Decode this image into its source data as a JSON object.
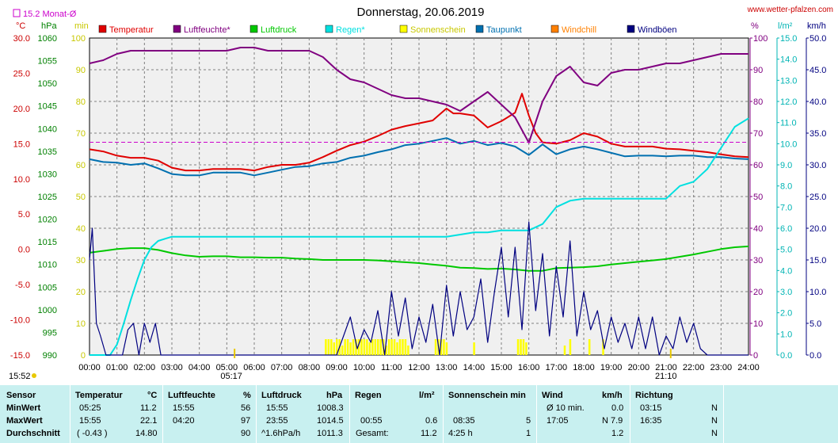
{
  "chart_data": {
    "type": "line",
    "title": "Donnerstag, 20.06.2019",
    "source": "www.wetter-pfalzen.com",
    "monthly_avg_label": "15.2 Monat-Ø",
    "x_ticks": [
      "00:00",
      "01:00",
      "02:00",
      "03:00",
      "04:00",
      "05:00",
      "06:00",
      "07:00",
      "08:00",
      "09:00",
      "10:00",
      "11:00",
      "12:00",
      "13:00",
      "14:00",
      "15:00",
      "16:00",
      "17:00",
      "18:00",
      "19:00",
      "20:00",
      "21:00",
      "22:00",
      "23:00",
      "24:00"
    ],
    "sunrise": "05:17",
    "sunset": "21:10",
    "daylight": "15:52",
    "axes": {
      "temperature": {
        "unit": "°C",
        "ticks": [
          "30.0",
          "25.0",
          "20.0",
          "15.0",
          "10.0",
          "5.0",
          "0.0",
          "-5.0",
          "-10.0",
          "-15.0"
        ],
        "range": [
          -15,
          30
        ],
        "color": "#cc0000"
      },
      "pressure": {
        "unit": "hPa",
        "ticks": [
          "1060",
          "1055",
          "1050",
          "1045",
          "1040",
          "1035",
          "1030",
          "1025",
          "1020",
          "1015",
          "1010",
          "1005",
          "1000",
          "995",
          "990"
        ],
        "range": [
          990,
          1060
        ],
        "color": "#008000"
      },
      "sunshine": {
        "unit": "min",
        "ticks": [
          "100",
          "90",
          "80",
          "70",
          "60",
          "50",
          "40",
          "30",
          "20",
          "10",
          "0"
        ],
        "range": [
          0,
          100
        ],
        "color": "#c8c800"
      },
      "humidity": {
        "unit": "%",
        "ticks": [
          "100",
          "90",
          "80",
          "70",
          "60",
          "50",
          "40",
          "30",
          "20",
          "10",
          "0"
        ],
        "range": [
          0,
          100
        ],
        "color": "#800080"
      },
      "rain": {
        "unit": "l/m²",
        "ticks": [
          "15.0",
          "14.0",
          "13.0",
          "12.0",
          "11.0",
          "10.0",
          "9.0",
          "8.0",
          "7.0",
          "6.0",
          "5.0",
          "4.0",
          "3.0",
          "2.0",
          "1.0",
          "0.0"
        ],
        "range": [
          0,
          15
        ],
        "color": "#00b4b4"
      },
      "wind": {
        "unit": "km/h",
        "ticks": [
          "50.0",
          "45.0",
          "40.0",
          "35.0",
          "30.0",
          "25.0",
          "20.0",
          "15.0",
          "10.0",
          "5.0",
          "0.0"
        ],
        "range": [
          0,
          50
        ],
        "color": "#000080"
      }
    },
    "legend": [
      {
        "name": "Temperatur",
        "color": "#e00000"
      },
      {
        "name": "Luftfeuchte*",
        "color": "#800080"
      },
      {
        "name": "Luftdruck",
        "color": "#00c800"
      },
      {
        "name": "Regen*",
        "color": "#00e0e0"
      },
      {
        "name": "Sonnenschein",
        "color": "#ffff00"
      },
      {
        "name": "Taupunkt",
        "color": "#0070b0"
      },
      {
        "name": "Windchill",
        "color": "#ff8000"
      },
      {
        "name": "Windböen",
        "color": "#000080"
      }
    ],
    "monthly_avg_temperature": 15.2,
    "series": [
      {
        "name": "Temperatur",
        "axis": "temperature",
        "color": "#e00000",
        "x": [
          0,
          0.5,
          1,
          1.5,
          2,
          2.5,
          3,
          3.5,
          4,
          4.5,
          5,
          5.5,
          6,
          6.5,
          7,
          7.5,
          8,
          8.5,
          9,
          9.5,
          10,
          10.5,
          11,
          11.5,
          12,
          12.5,
          13,
          13.25,
          13.5,
          14,
          14.5,
          15,
          15.5,
          15.75,
          16,
          16.25,
          16.5,
          17,
          17.5,
          18,
          18.5,
          19,
          19.5,
          20,
          20.5,
          21,
          21.5,
          22,
          22.5,
          23,
          23.5,
          24
        ],
        "y": [
          14.2,
          13.9,
          13.3,
          13.0,
          13.0,
          12.6,
          11.6,
          11.2,
          11.2,
          11.4,
          11.4,
          11.4,
          11.2,
          11.7,
          12.0,
          12.0,
          12.3,
          13.1,
          14.0,
          14.8,
          15.3,
          16.1,
          17.0,
          17.5,
          17.9,
          18.3,
          20.0,
          19.3,
          19.3,
          19.0,
          17.3,
          18.2,
          19.4,
          22.1,
          19.0,
          16.5,
          15.2,
          15.0,
          15.5,
          16.5,
          16.0,
          15.0,
          14.6,
          14.6,
          14.6,
          14.3,
          14.2,
          14.0,
          13.8,
          13.5,
          13.2,
          13.1
        ]
      },
      {
        "name": "Taupunkt",
        "axis": "temperature",
        "color": "#0070b0",
        "x": [
          0,
          0.5,
          1,
          1.5,
          2,
          2.5,
          3,
          3.5,
          4,
          4.5,
          5,
          5.5,
          6,
          6.5,
          7,
          7.5,
          8,
          8.5,
          9,
          9.5,
          10,
          10.5,
          11,
          11.5,
          12,
          12.5,
          13,
          13.5,
          14,
          14.5,
          15,
          15.5,
          16,
          16.5,
          17,
          17.5,
          18,
          18.5,
          19,
          19.5,
          20,
          20.5,
          21,
          21.5,
          22,
          22.5,
          23,
          23.5,
          24
        ],
        "y": [
          12.8,
          12.4,
          12.3,
          12.0,
          12.2,
          11.5,
          10.7,
          10.5,
          10.5,
          10.9,
          10.9,
          10.9,
          10.5,
          10.9,
          11.3,
          11.7,
          11.8,
          12.2,
          12.4,
          13.0,
          13.3,
          13.8,
          14.2,
          14.8,
          15.0,
          15.4,
          15.8,
          15.0,
          15.4,
          14.8,
          15.1,
          14.6,
          13.4,
          14.9,
          13.5,
          14.2,
          14.6,
          14.2,
          13.7,
          13.2,
          13.3,
          13.3,
          13.2,
          13.3,
          13.3,
          13.1,
          13.1,
          12.9,
          12.8
        ]
      },
      {
        "name": "Luftfeuchte*",
        "axis": "humidity",
        "color": "#800080",
        "x": [
          0,
          0.5,
          1,
          1.5,
          2,
          2.5,
          3,
          3.5,
          4,
          4.5,
          5,
          5.5,
          6,
          6.5,
          7,
          7.5,
          8,
          8.5,
          9,
          9.5,
          10,
          10.5,
          11,
          11.5,
          12,
          12.5,
          13,
          13.5,
          14,
          14.5,
          15,
          15.5,
          16,
          16.5,
          17,
          17.5,
          18,
          18.5,
          19,
          19.5,
          20,
          20.5,
          21,
          21.5,
          22,
          22.5,
          23,
          23.5,
          24
        ],
        "y": [
          92,
          93,
          95,
          96,
          96,
          96,
          96,
          96,
          96,
          96,
          96,
          97,
          97,
          96,
          96,
          96,
          96,
          94,
          90,
          87,
          86,
          84,
          82,
          81,
          81,
          80,
          79,
          77,
          80,
          83,
          79,
          75,
          67,
          80,
          88,
          91,
          86,
          85,
          89,
          90,
          90,
          91,
          92,
          92,
          93,
          94,
          95,
          95,
          95
        ]
      },
      {
        "name": "Luftdruck",
        "axis": "pressure",
        "color": "#00c800",
        "x": [
          0,
          0.5,
          1,
          1.5,
          2,
          2.5,
          3,
          3.5,
          4,
          4.5,
          5,
          5.5,
          6,
          6.5,
          7,
          7.5,
          8,
          8.5,
          9,
          9.5,
          10,
          10.5,
          11,
          11.5,
          12,
          12.5,
          13,
          13.5,
          14,
          14.5,
          15,
          15.5,
          16,
          16.5,
          17,
          17.5,
          18,
          18.5,
          19,
          19.5,
          20,
          20.5,
          21,
          21.5,
          22,
          22.5,
          23,
          23.5,
          24
        ],
        "y": [
          1012.6,
          1013.0,
          1013.4,
          1013.6,
          1013.6,
          1013.2,
          1012.5,
          1012.0,
          1011.7,
          1011.8,
          1011.8,
          1011.6,
          1011.6,
          1011.5,
          1011.5,
          1011.3,
          1011.2,
          1011.0,
          1011.0,
          1011.0,
          1011.0,
          1010.9,
          1010.7,
          1010.5,
          1010.3,
          1010.0,
          1009.7,
          1009.3,
          1009.2,
          1009.0,
          1009.1,
          1008.9,
          1008.6,
          1008.6,
          1009.2,
          1009.3,
          1009.4,
          1009.6,
          1010.0,
          1010.3,
          1010.6,
          1010.9,
          1011.2,
          1011.7,
          1012.2,
          1012.8,
          1013.4,
          1013.8,
          1014.0
        ]
      },
      {
        "name": "Regen*",
        "axis": "rain",
        "color": "#00e0e0",
        "x": [
          0,
          0.5,
          0.75,
          1,
          1.25,
          1.5,
          1.75,
          2,
          2.25,
          2.5,
          2.75,
          3,
          6,
          9,
          12,
          13,
          14,
          14.5,
          15,
          15.5,
          16,
          16.5,
          17,
          17.5,
          18,
          19,
          20,
          20.5,
          21,
          21.25,
          21.5,
          22,
          22.5,
          23,
          23.5,
          24
        ],
        "y": [
          0,
          0,
          0,
          0.5,
          1.5,
          2.6,
          3.6,
          4.5,
          5.1,
          5.4,
          5.5,
          5.6,
          5.6,
          5.6,
          5.6,
          5.6,
          5.8,
          5.8,
          5.9,
          5.9,
          5.9,
          6.2,
          7.0,
          7.3,
          7.4,
          7.4,
          7.4,
          7.4,
          7.4,
          7.7,
          8.0,
          8.2,
          8.8,
          9.8,
          10.8,
          11.2
        ]
      },
      {
        "name": "Windböen",
        "axis": "wind",
        "color": "#000080",
        "x": [
          0,
          0.1,
          0.25,
          0.4,
          0.6,
          0.8,
          1,
          1.2,
          1.4,
          1.6,
          1.8,
          2,
          2.2,
          2.4,
          2.6,
          2.8,
          3,
          3.5,
          4,
          4.5,
          5,
          5.5,
          6,
          6.5,
          7,
          7.5,
          8,
          8.5,
          9,
          9.25,
          9.5,
          9.75,
          10,
          10.25,
          10.5,
          10.75,
          11,
          11.25,
          11.5,
          11.75,
          12,
          12.25,
          12.5,
          12.75,
          13,
          13.25,
          13.5,
          13.75,
          14,
          14.25,
          14.5,
          14.75,
          15,
          15.25,
          15.5,
          15.75,
          16,
          16.25,
          16.5,
          16.75,
          17,
          17.25,
          17.5,
          17.75,
          18,
          18.25,
          18.5,
          18.75,
          19,
          19.25,
          19.5,
          19.75,
          20,
          20.25,
          20.5,
          20.75,
          21,
          21.25,
          21.5,
          21.75,
          22,
          22.25,
          22.5,
          22.75,
          23,
          23.5,
          24
        ],
        "y": [
          15,
          20,
          5,
          3,
          0,
          0,
          0,
          0,
          4,
          5,
          0,
          5,
          2,
          5,
          0,
          0,
          0,
          0,
          0,
          0,
          0,
          0,
          0,
          0,
          0,
          0,
          0,
          0,
          0,
          3,
          6,
          1,
          4,
          2,
          7,
          0,
          10,
          3,
          9,
          1,
          6,
          2,
          8,
          0,
          11,
          3,
          10,
          4,
          6,
          12,
          2,
          10,
          17,
          6,
          17,
          4,
          21,
          7,
          16,
          3,
          14,
          6,
          18,
          3,
          10,
          4,
          7,
          1,
          6,
          2,
          5,
          1,
          6,
          1,
          6,
          0,
          3,
          1,
          6,
          2,
          5,
          1,
          0,
          0,
          0,
          0,
          0
        ]
      },
      {
        "name": "Sonnenschein",
        "axis": "sunshine",
        "color": "#ffff00",
        "x": [
          8.6,
          8.7,
          8.8,
          8.9,
          9.0,
          9.1,
          9.2,
          9.3,
          9.4,
          9.5,
          9.6,
          9.7,
          9.8,
          9.9,
          10.0,
          10.1,
          10.2,
          10.3,
          10.4,
          10.5,
          10.6,
          10.7,
          10.8,
          10.9,
          11.0,
          11.1,
          11.2,
          11.3,
          11.4,
          11.5,
          11.6,
          12.6,
          12.7,
          12.8,
          12.9,
          13.0,
          14.0,
          15.6,
          15.7,
          15.8,
          15.9,
          17.3,
          17.5,
          18.2,
          18.7
        ],
        "y": [
          5,
          5,
          5,
          4,
          5,
          5,
          3,
          5,
          5,
          4,
          5,
          5,
          5,
          5,
          5,
          5,
          4,
          5,
          5,
          5,
          5,
          5,
          3,
          5,
          5,
          5,
          4,
          5,
          5,
          5,
          3,
          5,
          5,
          5,
          5,
          4,
          4,
          5,
          5,
          5,
          4,
          3,
          5,
          5,
          5
        ]
      }
    ]
  },
  "stats": {
    "headers": {
      "sensor": "Sensor",
      "temperatur": "Temperatur",
      "temperatur_unit": "°C",
      "luftfeuchte": "Luftfeuchte",
      "luftfeuchte_unit": "%",
      "luftdruck": "Luftdruck",
      "luftdruck_unit": "hPa",
      "regen": "Regen",
      "regen_unit": "l/m²",
      "sonnenschein": "Sonnenschein min",
      "wind": "Wind",
      "wind_unit": "km/h",
      "richtung": "Richtung"
    },
    "rows": {
      "min": {
        "label": "MinWert",
        "temp_time": "05:25",
        "temp_val": "11.2",
        "hum_time": "15:55",
        "hum_val": "56",
        "pres_time": "15:55",
        "pres_val": "1008.3",
        "rain_time": "",
        "rain_val": "",
        "sun_time": "",
        "sun_val": "",
        "wind_time": "Ø 10 min.",
        "wind_val": "0.0",
        "dir_time": "03:15",
        "dir_val": "N"
      },
      "max": {
        "label": "MaxWert",
        "temp_time": "15:55",
        "temp_val": "22.1",
        "hum_time": "04:20",
        "hum_val": "97",
        "pres_time": "23:55",
        "pres_val": "1014.5",
        "rain_time": "00:55",
        "rain_val": "0.6",
        "sun_time": "08:35",
        "sun_val": "5",
        "wind_time": "17:05",
        "wind_val": "N 7.9",
        "dir_time": "16:35",
        "dir_val": "N"
      },
      "avg": {
        "label": "Durchschnitt",
        "temp_time": "( -0.43 )",
        "temp_val": "14.80",
        "hum_time": "",
        "hum_val": "90",
        "pres_time": "^1.6hPa/h",
        "pres_val": "1011.3",
        "rain_time": "Gesamt:",
        "rain_val": "11.2",
        "sun_time": "4:25 h",
        "sun_val": "1",
        "wind_time": "",
        "wind_val": "1.2",
        "dir_time": "",
        "dir_val": "N"
      }
    }
  }
}
